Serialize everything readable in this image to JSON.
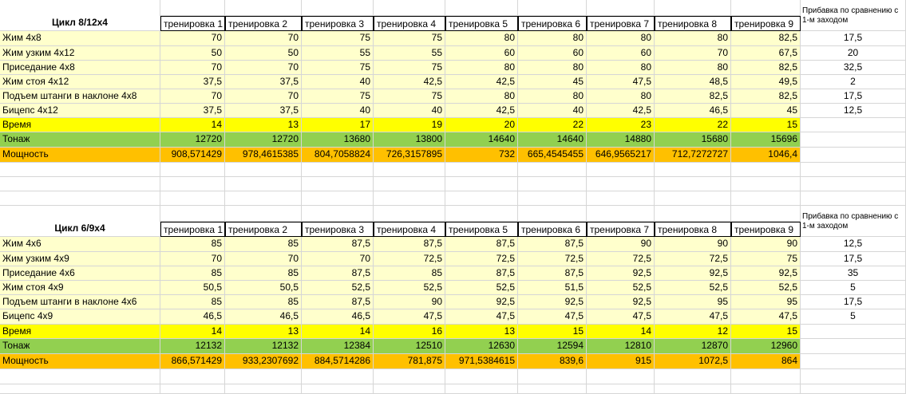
{
  "tables": [
    {
      "title": "Цикл 8/12х4",
      "columns": [
        "тренировка 1",
        "тренировка 2",
        "тренировка 3",
        "тренировка 4",
        "тренировка 5",
        "тренировка 6",
        "тренировка 7",
        "тренировка 8",
        "тренировка 9"
      ],
      "extra_header": "Прибавка по сравнению с 1-м заходом",
      "rows": [
        {
          "label": "Жим 4х8",
          "values": [
            "70",
            "70",
            "75",
            "75",
            "80",
            "80",
            "80",
            "80",
            "82,5"
          ],
          "extra": "17,5"
        },
        {
          "label": "Жим узким 4х12",
          "values": [
            "50",
            "50",
            "55",
            "55",
            "60",
            "60",
            "60",
            "70",
            "67,5"
          ],
          "extra": "20"
        },
        {
          "label": "Приседание 4х8",
          "values": [
            "70",
            "70",
            "75",
            "75",
            "80",
            "80",
            "80",
            "80",
            "82,5"
          ],
          "extra": "32,5"
        },
        {
          "label": "Жим стоя 4х12",
          "values": [
            "37,5",
            "37,5",
            "40",
            "42,5",
            "42,5",
            "45",
            "47,5",
            "48,5",
            "49,5"
          ],
          "extra": "2"
        },
        {
          "label": "Подъем штанги в наклоне 4х8",
          "values": [
            "70",
            "70",
            "75",
            "75",
            "80",
            "80",
            "80",
            "82,5",
            "82,5"
          ],
          "extra": "17,5"
        },
        {
          "label": "Бицепс 4х12",
          "values": [
            "37,5",
            "37,5",
            "40",
            "40",
            "42,5",
            "40",
            "42,5",
            "46,5",
            "45"
          ],
          "extra": "12,5"
        }
      ],
      "time": {
        "label": "Время",
        "values": [
          "14",
          "13",
          "17",
          "19",
          "20",
          "22",
          "23",
          "22",
          "15"
        ]
      },
      "tonnage": {
        "label": "Тонаж",
        "values": [
          "12720",
          "12720",
          "13680",
          "13800",
          "14640",
          "14640",
          "14880",
          "15680",
          "15696"
        ]
      },
      "power": {
        "label": "Мощность",
        "values": [
          "908,571429",
          "978,4615385",
          "804,7058824",
          "726,3157895",
          "732",
          "665,4545455",
          "646,9565217",
          "712,7272727",
          "1046,4"
        ]
      }
    },
    {
      "title": "Цикл 6/9х4",
      "columns": [
        "тренировка 1",
        "тренировка 2",
        "тренировка 3",
        "тренировка 4",
        "тренировка 5",
        "тренировка 6",
        "тренировка 7",
        "тренировка 8",
        "тренировка 9"
      ],
      "extra_header": "Прибавка по сравнению с 1-м заходом",
      "rows": [
        {
          "label": "Жим 4х6",
          "values": [
            "85",
            "85",
            "87,5",
            "87,5",
            "87,5",
            "87,5",
            "90",
            "90",
            "90"
          ],
          "extra": "12,5"
        },
        {
          "label": "Жим узким 4х9",
          "values": [
            "70",
            "70",
            "70",
            "72,5",
            "72,5",
            "72,5",
            "72,5",
            "72,5",
            "75"
          ],
          "extra": "17,5"
        },
        {
          "label": "Приседание 4х6",
          "values": [
            "85",
            "85",
            "87,5",
            "85",
            "87,5",
            "87,5",
            "92,5",
            "92,5",
            "92,5"
          ],
          "extra": "35"
        },
        {
          "label": "Жим стоя 4х9",
          "values": [
            "50,5",
            "50,5",
            "52,5",
            "52,5",
            "52,5",
            "51,5",
            "52,5",
            "52,5",
            "52,5"
          ],
          "extra": "5"
        },
        {
          "label": "Подъем штанги в наклоне 4х6",
          "values": [
            "85",
            "85",
            "87,5",
            "90",
            "92,5",
            "92,5",
            "92,5",
            "95",
            "95"
          ],
          "extra": "17,5"
        },
        {
          "label": "Бицепс 4х9",
          "values": [
            "46,5",
            "46,5",
            "46,5",
            "47,5",
            "47,5",
            "47,5",
            "47,5",
            "47,5",
            "47,5"
          ],
          "extra": "5"
        }
      ],
      "time": {
        "label": "Время",
        "values": [
          "14",
          "13",
          "14",
          "16",
          "13",
          "15",
          "14",
          "12",
          "15"
        ]
      },
      "tonnage": {
        "label": "Тонаж",
        "values": [
          "12132",
          "12132",
          "12384",
          "12510",
          "12630",
          "12594",
          "12810",
          "12870",
          "12960"
        ]
      },
      "power": {
        "label": "Мощность",
        "values": [
          "866,571429",
          "933,2307692",
          "884,5714286",
          "781,875",
          "971,5384615",
          "839,6",
          "915",
          "1072,5",
          "864"
        ]
      }
    }
  ]
}
